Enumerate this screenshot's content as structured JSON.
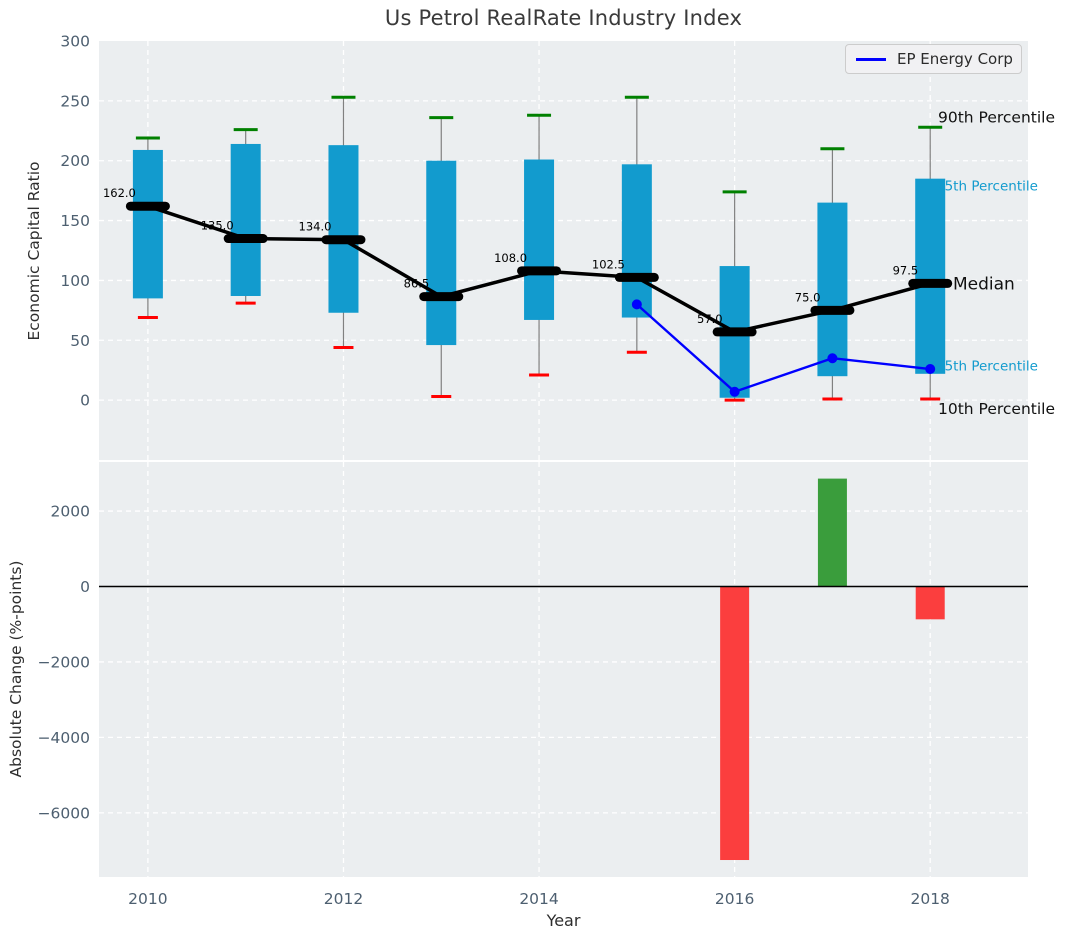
{
  "figure": {
    "title": "Us Petrol RealRate Industry Index"
  },
  "legend": {
    "label": "EP Energy Corp",
    "line_color": "#0000ff",
    "position": "upper right"
  },
  "colors": {
    "box_fill": "#129bce",
    "p90_cap": "#008000",
    "p10_cap": "#ff0000",
    "median": "#000000",
    "company_line": "#0000ff",
    "bar_positive": "#3a9d3c",
    "bar_negative": "#fb3e3e",
    "plot_background": "#ebeef0",
    "tick_text": "#4d5f70",
    "gridline": "#ffffff",
    "whisker": "#808080"
  },
  "chart_data": [
    {
      "type": "box",
      "title": "Us Petrol RealRate Industry Index",
      "ylabel": "Economic Capital Ratio",
      "x": [
        2010,
        2011,
        2012,
        2013,
        2014,
        2015,
        2016,
        2017,
        2018
      ],
      "ylim": [
        -50,
        300
      ],
      "yticks": [
        300,
        250,
        200,
        150,
        100,
        50,
        0
      ],
      "ytick_labels": [
        "300",
        "250",
        "200",
        "150",
        "100",
        "50",
        "0"
      ],
      "grid": true,
      "legend_position": "upper right",
      "series": [
        {
          "name": "90th Percentile",
          "values": [
            219,
            226,
            253,
            236,
            238,
            253,
            174,
            210,
            228
          ]
        },
        {
          "name": "75th Percentile",
          "values": [
            209,
            214,
            213,
            200,
            201,
            197,
            112,
            165,
            185
          ]
        },
        {
          "name": "Median",
          "values": [
            162,
            135,
            134,
            86.5,
            108,
            102.5,
            57,
            75,
            97.5
          ]
        },
        {
          "name": "25th Percentile",
          "values": [
            85,
            87,
            73,
            46,
            67,
            69,
            2,
            20,
            22
          ]
        },
        {
          "name": "10th Percentile",
          "values": [
            69,
            81,
            44,
            3,
            21,
            40,
            0,
            1,
            1
          ]
        },
        {
          "name": "EP Energy Corp",
          "x": [
            2015,
            2016,
            2017,
            2018
          ],
          "values": [
            80,
            7,
            35,
            26
          ]
        }
      ],
      "median_labels": [
        "162.0",
        "135.0",
        "134.0",
        "86.5",
        "108.0",
        "102.5",
        "57.0",
        "75.0",
        "97.5"
      ],
      "right_annotations": [
        {
          "text": "90th Percentile",
          "value": 236.5,
          "color": "#111111",
          "size": 15.5
        },
        {
          "text": "75th Percentile",
          "value": 179,
          "color": "#129bce",
          "size": 13.5
        },
        {
          "text": "Median",
          "value": 97.5,
          "color": "#111111",
          "size": 17
        },
        {
          "text": "25th Percentile",
          "value": 29,
          "color": "#129bce",
          "size": 13.5
        },
        {
          "text": "10th Percentile",
          "value": -7,
          "color": "#111111",
          "size": 15.5
        }
      ]
    },
    {
      "type": "bar",
      "ylabel": "Absolute Change (%-points)",
      "xlabel": "Year",
      "x": [
        2016,
        2017,
        2018
      ],
      "values": [
        -7250,
        2860,
        -870
      ],
      "ylim": [
        -7700,
        3300
      ],
      "yticks": [
        2000,
        0,
        -2000,
        -4000,
        -6000
      ],
      "ytick_labels": [
        "2000",
        "0",
        "−2000",
        "−4000",
        "−6000"
      ],
      "xticks": [
        2010,
        2012,
        2014,
        2016,
        2018
      ],
      "xtick_labels": [
        "2010",
        "2012",
        "2014",
        "2016",
        "2018"
      ],
      "zero_line": true,
      "grid": true
    }
  ]
}
